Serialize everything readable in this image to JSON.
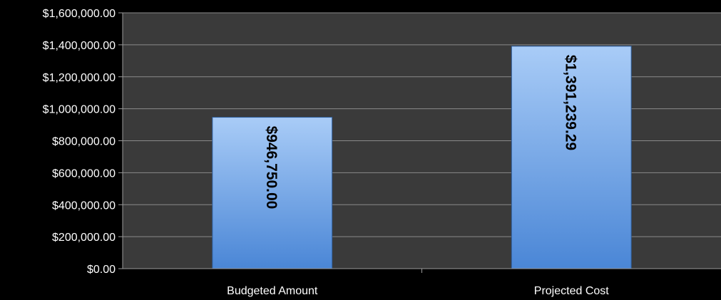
{
  "colors": {
    "background": "#000000",
    "plot_area": "#3a3a3a",
    "gridline": "#8a8a8a",
    "axis": "#9a9a9a",
    "text": "#ffffff",
    "bar_top": "#a9ccf7",
    "bar_bottom": "#4a86d6",
    "data_label": "#000000"
  },
  "chart_data": {
    "type": "bar",
    "title": "",
    "xlabel": "",
    "ylabel": "",
    "categories": [
      "Budgeted Amount",
      "Projected Cost"
    ],
    "values": [
      946750.0,
      1391239.29
    ],
    "data_labels": [
      "$946,750.00",
      "$1,391,239.29"
    ],
    "ylim": [
      0,
      1600000
    ],
    "yticks": [
      0,
      200000,
      400000,
      600000,
      800000,
      1000000,
      1200000,
      1400000,
      1600000
    ],
    "ytick_labels": [
      "$0.00",
      "$200,000.00",
      "$400,000.00",
      "$600,000.00",
      "$800,000.00",
      "$1,000,000.00",
      "$1,200,000.00",
      "$1,400,000.00",
      "$1,600,000.00"
    ],
    "grid": true,
    "legend": "none"
  }
}
